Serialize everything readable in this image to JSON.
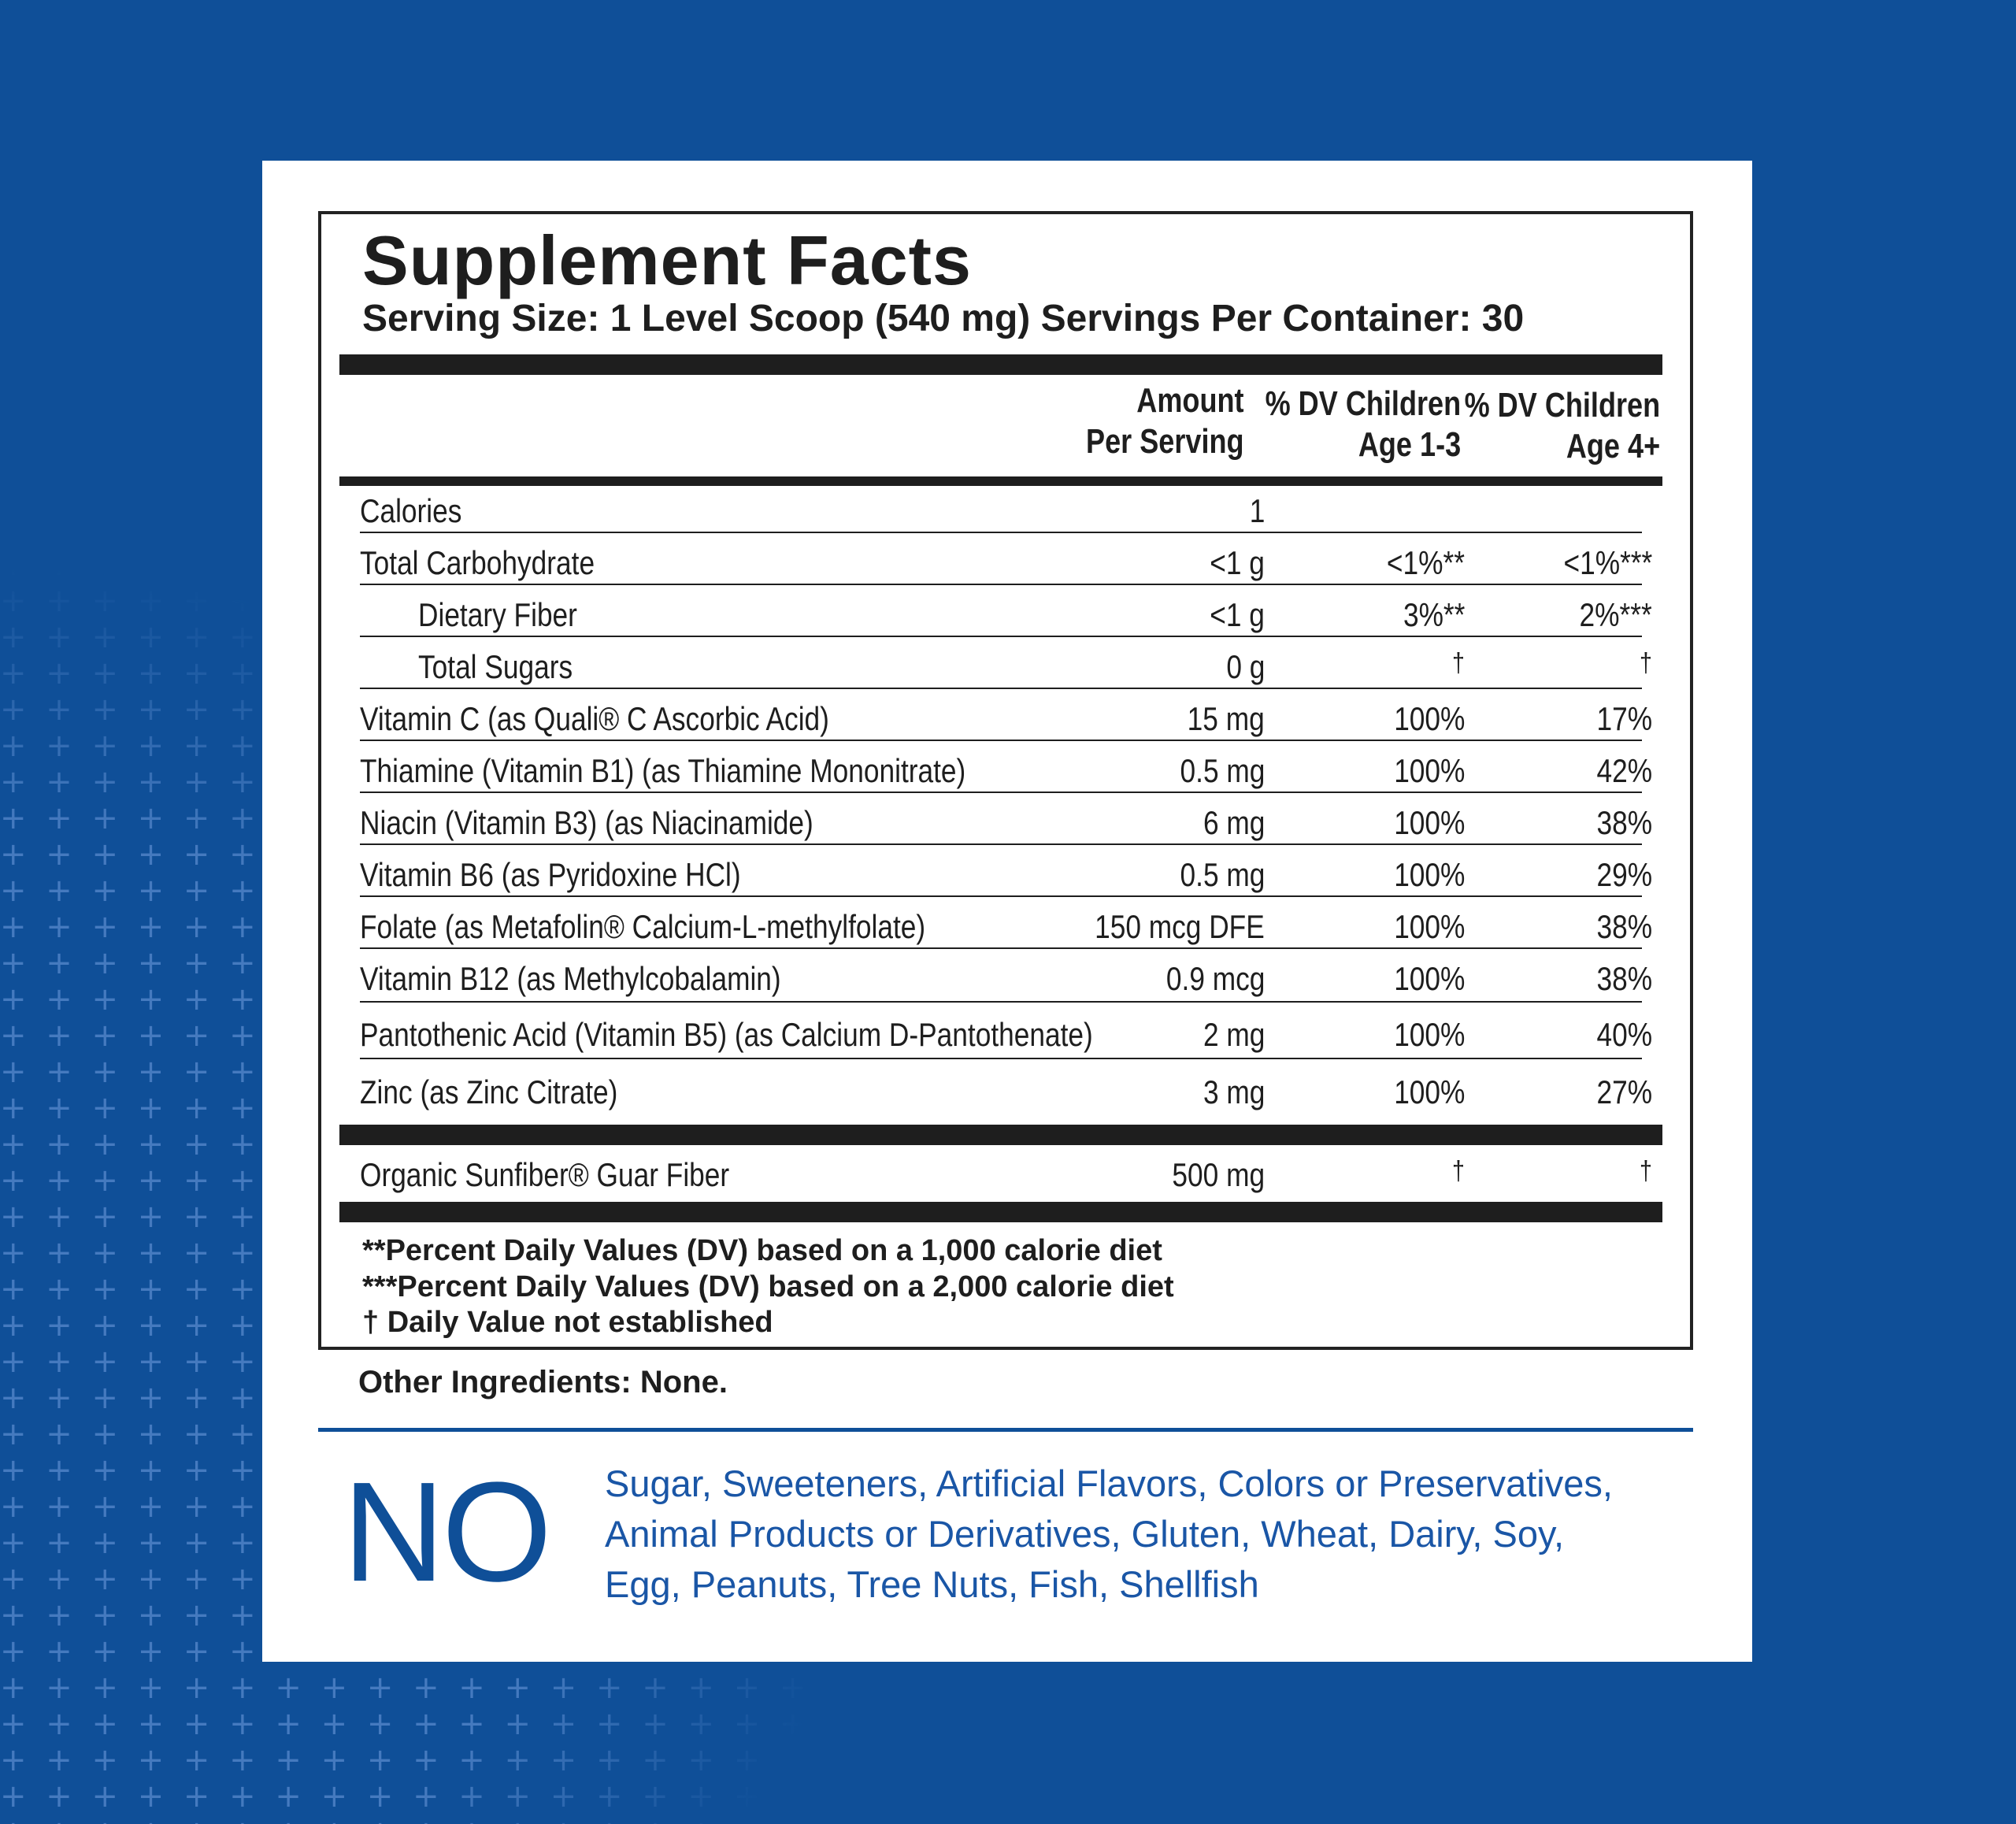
{
  "label": {
    "title": "Supplement Facts",
    "serving": "Serving Size: 1 Level Scoop (540 mg)  Servings Per Container: 30",
    "headers": {
      "amount": [
        "Amount",
        "Per Serving"
      ],
      "dv1": [
        "% DV Children",
        "Age 1-3"
      ],
      "dv2": [
        "% DV Children",
        "Age 4+"
      ]
    },
    "rows": [
      {
        "name": "Calories",
        "amount": "1",
        "dv1": "",
        "dv2": ""
      },
      {
        "name": "Total Carbohydrate",
        "amount": "<1 g",
        "dv1": "<1%**",
        "dv2": "<1%***"
      },
      {
        "name": "Dietary Fiber",
        "amount": "<1 g",
        "dv1": "3%**",
        "dv2": "2%***"
      },
      {
        "name": "Total Sugars",
        "amount": "0 g",
        "dv1": "†",
        "dv2": "†"
      },
      {
        "name": "Vitamin C (as Quali® C  Ascorbic Acid)",
        "amount": "15 mg",
        "dv1": "100%",
        "dv2": "17%"
      },
      {
        "name": "Thiamine (Vitamin B1) (as Thiamine Mononitrate)",
        "amount": "0.5 mg",
        "dv1": "100%",
        "dv2": "42%"
      },
      {
        "name": "Niacin (Vitamin B3) (as Niacinamide)",
        "amount": "6 mg",
        "dv1": "100%",
        "dv2": "38%"
      },
      {
        "name": "Vitamin B6 (as Pyridoxine HCl)",
        "amount": "0.5 mg",
        "dv1": "100%",
        "dv2": "29%"
      },
      {
        "name": "Folate (as Metafolin® Calcium-L-methylfolate)",
        "amount": "150 mcg DFE",
        "dv1": "100%",
        "dv2": "38%"
      },
      {
        "name": "Vitamin B12 (as Methylcobalamin)",
        "amount": "0.9 mcg",
        "dv1": "100%",
        "dv2": "38%"
      },
      {
        "name": "Pantothenic Acid (Vitamin B5) (as Calcium D-Pantothenate)",
        "amount": "2 mg",
        "dv1": "100%",
        "dv2": "40%"
      },
      {
        "name": "Zinc (as Zinc Citrate)",
        "amount": "3 mg",
        "dv1": "100%",
        "dv2": "27%"
      }
    ],
    "other_row": {
      "name": "Organic Sunfiber® Guar Fiber",
      "amount": "500 mg",
      "dv1": "†",
      "dv2": "†"
    },
    "footnotes": [
      "**Percent Daily Values (DV) based on a 1,000 calorie diet",
      "***Percent Daily Values (DV) based on a 2,000 calorie diet",
      "† Daily Value not established"
    ]
  },
  "other_ingredients": "Other Ingredients: None.",
  "free_from": {
    "heading": "NO",
    "lines": [
      "Sugar, Sweeteners, Artificial Flavors, Colors or Preservatives,",
      "Animal Products or Derivatives, Gluten, Wheat, Dairy, Soy,",
      "Egg, Peanuts, Tree Nuts, Fish, Shellfish"
    ]
  },
  "colors": {
    "brand_blue": "#0f4f98",
    "text": "#1e1e1e"
  }
}
